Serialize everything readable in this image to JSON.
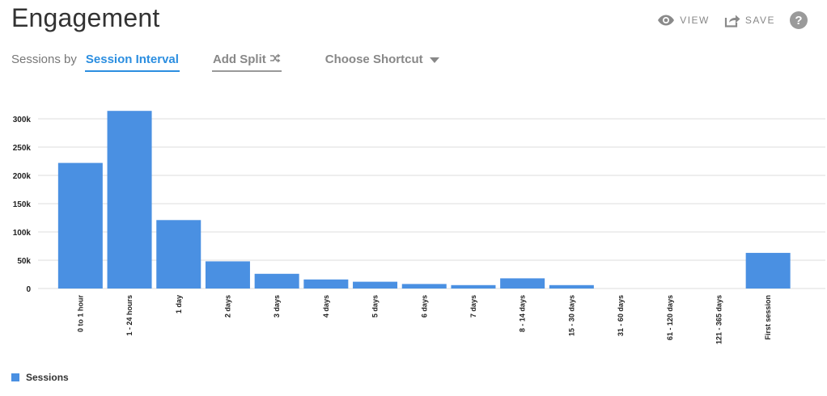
{
  "page_title": "Engagement",
  "toolbar": {
    "view_label": "VIEW",
    "save_label": "SAVE",
    "help_label": "?"
  },
  "controls": {
    "sessions_by_label": "Sessions by",
    "interval_label": "Session Interval",
    "split_label": "Add Split",
    "shortcut_label": "Choose Shortcut"
  },
  "colors": {
    "bar": "#4a90e2",
    "accent": "#2b8ee0",
    "grid": "#dddddd"
  },
  "legend": {
    "label": "Sessions"
  },
  "chart_data": {
    "type": "bar",
    "title": "",
    "xlabel": "",
    "ylabel": "",
    "categories": [
      "0 to 1 hour",
      "1 - 24 hours",
      "1 day",
      "2 days",
      "3 days",
      "4 days",
      "5 days",
      "6 days",
      "7 days",
      "8 - 14 days",
      "15 - 30 days",
      "31 - 60 days",
      "61 - 120 days",
      "121 - 365 days",
      "First session"
    ],
    "series": [
      {
        "name": "Sessions",
        "values": [
          222000,
          314000,
          121000,
          48000,
          26000,
          16000,
          12000,
          8000,
          6000,
          18000,
          6000,
          0,
          0,
          0,
          63000
        ]
      }
    ],
    "yticks": [
      0,
      50000,
      100000,
      150000,
      200000,
      250000,
      300000
    ],
    "ytick_labels": [
      "0",
      "50k",
      "100k",
      "150k",
      "200k",
      "250k",
      "300k"
    ],
    "ylim": [
      0,
      300000
    ],
    "grid": true,
    "legend_position": "bottom-left"
  }
}
